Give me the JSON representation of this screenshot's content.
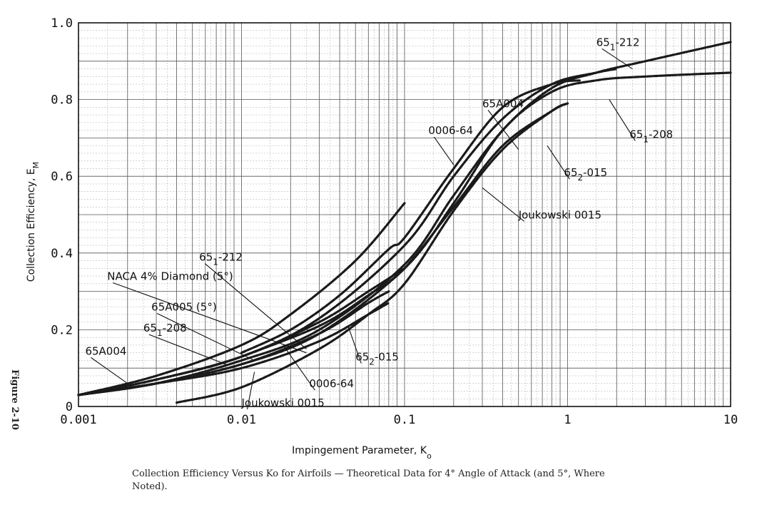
{
  "figure_label": "Figure 2-10",
  "caption": "Collection Efficiency Versus Ko for Airfoils — Theoretical Data for 4° Angle of Attack (and 5°, Where Noted).",
  "chart_data": {
    "type": "line",
    "title": "",
    "xlabel": "Impingement Parameter, K",
    "xlabel_sub": "o",
    "ylabel": "Collection Efficiency, E",
    "ylabel_sub": "M",
    "xscale": "log",
    "xlim": [
      0.001,
      10
    ],
    "ylim": [
      0,
      1.0
    ],
    "grid": true,
    "x_ticks": [
      {
        "value": 0.001,
        "label": "0.001"
      },
      {
        "value": 0.01,
        "label": "0.01"
      },
      {
        "value": 0.1,
        "label": "0.1"
      },
      {
        "value": 1,
        "label": "1"
      },
      {
        "value": 10,
        "label": "10"
      }
    ],
    "y_ticks": [
      {
        "value": 0,
        "label": "0"
      },
      {
        "value": 0.2,
        "label": "0.2"
      },
      {
        "value": 0.4,
        "label": "0.4"
      },
      {
        "value": 0.6,
        "label": "0.6"
      },
      {
        "value": 0.8,
        "label": "0.8"
      },
      {
        "value": 1.0,
        "label": "1.0"
      }
    ],
    "series": [
      {
        "x": [
          0.001,
          0.003,
          0.01,
          0.03,
          0.1,
          0.2,
          0.4,
          0.8,
          1.5,
          3,
          10
        ],
        "y": [
          0.03,
          0.06,
          0.12,
          0.2,
          0.37,
          0.55,
          0.72,
          0.83,
          0.87,
          0.9,
          0.95
        ]
      },
      {
        "x": [
          0.001,
          0.003,
          0.01,
          0.03,
          0.1,
          0.2,
          0.4,
          0.8,
          1.5,
          3,
          10
        ],
        "y": [
          0.03,
          0.06,
          0.11,
          0.19,
          0.36,
          0.53,
          0.72,
          0.82,
          0.85,
          0.86,
          0.87
        ]
      },
      {
        "x": [
          0.001,
          0.003,
          0.01,
          0.03,
          0.1,
          0.2,
          0.4,
          0.8,
          1.5,
          2.0
        ],
        "y": [
          0.03,
          0.07,
          0.13,
          0.23,
          0.42,
          0.6,
          0.75,
          0.84,
          0.87,
          0.88
        ]
      },
      {
        "x": [
          0.01,
          0.02,
          0.04,
          0.08,
          0.1,
          0.2,
          0.4,
          0.8,
          1.2
        ],
        "y": [
          0.14,
          0.2,
          0.29,
          0.41,
          0.44,
          0.62,
          0.78,
          0.84,
          0.85
        ]
      },
      {
        "x": [
          0.01,
          0.03,
          0.06,
          0.1,
          0.2,
          0.4,
          0.8,
          1.0
        ],
        "y": [
          0.13,
          0.21,
          0.29,
          0.36,
          0.52,
          0.68,
          0.77,
          0.79
        ]
      },
      {
        "x": [
          0.004,
          0.01,
          0.03,
          0.06,
          0.1,
          0.2,
          0.4,
          0.8,
          1.0
        ],
        "y": [
          0.01,
          0.05,
          0.15,
          0.24,
          0.32,
          0.51,
          0.67,
          0.77,
          0.79
        ]
      },
      {
        "x": [
          0.001,
          0.003,
          0.01,
          0.02,
          0.05,
          0.1
        ],
        "y": [
          0.03,
          0.08,
          0.16,
          0.24,
          0.38,
          0.53
        ]
      },
      {
        "x": [
          0.001,
          0.003,
          0.01,
          0.03,
          0.06,
          0.1
        ],
        "y": [
          0.03,
          0.07,
          0.13,
          0.22,
          0.3,
          0.36
        ]
      },
      {
        "x": [
          0.001,
          0.003,
          0.01,
          0.03,
          0.06,
          0.08
        ],
        "y": [
          0.03,
          0.06,
          0.11,
          0.19,
          0.27,
          0.3
        ]
      },
      {
        "x": [
          0.001,
          0.003,
          0.01,
          0.03,
          0.06,
          0.08
        ],
        "y": [
          0.03,
          0.06,
          0.1,
          0.17,
          0.24,
          0.27
        ]
      }
    ],
    "annotations": [
      {
        "prefix": "65",
        "sub": "1",
        "suffix": "-212",
        "tx": 1.5,
        "ty": 0.94,
        "ax": 2.5,
        "ay": 0.88
      },
      {
        "prefix": "65A004",
        "sub": "",
        "suffix": "",
        "tx": 0.3,
        "ty": 0.78,
        "ax": 0.5,
        "ay": 0.67
      },
      {
        "prefix": "0006-64",
        "sub": "",
        "suffix": "",
        "tx": 0.14,
        "ty": 0.71,
        "ax": 0.2,
        "ay": 0.63
      },
      {
        "prefix": "65",
        "sub": "1",
        "suffix": "-208",
        "tx": 2.4,
        "ty": 0.7,
        "ax": 1.8,
        "ay": 0.8
      },
      {
        "prefix": "65",
        "sub": "2",
        "suffix": "-015",
        "tx": 0.95,
        "ty": 0.6,
        "ax": 0.75,
        "ay": 0.68
      },
      {
        "prefix": "Joukowski 0015",
        "sub": "",
        "suffix": "",
        "tx": 0.5,
        "ty": 0.49,
        "ax": 0.3,
        "ay": 0.57
      },
      {
        "prefix": "65",
        "sub": "1",
        "suffix": "-212",
        "tx": 0.0055,
        "ty": 0.38,
        "ax": 0.025,
        "ay": 0.15
      },
      {
        "prefix": "NACA 4% Diamond (5°)",
        "sub": "",
        "suffix": "",
        "tx": 0.0015,
        "ty": 0.33,
        "ax": 0.025,
        "ay": 0.14
      },
      {
        "prefix": "65A005 (5°)",
        "sub": "",
        "suffix": "",
        "tx": 0.0028,
        "ty": 0.25,
        "ax": 0.012,
        "ay": 0.12
      },
      {
        "prefix": "65",
        "sub": "1",
        "suffix": "-208",
        "tx": 0.0025,
        "ty": 0.195,
        "ax": 0.008,
        "ay": 0.11
      },
      {
        "prefix": "65A004",
        "sub": "",
        "suffix": "",
        "tx": 0.0011,
        "ty": 0.135,
        "ax": 0.002,
        "ay": 0.06
      },
      {
        "prefix": "65",
        "sub": "2",
        "suffix": "-015",
        "tx": 0.05,
        "ty": 0.12,
        "ax": 0.045,
        "ay": 0.21
      },
      {
        "prefix": "0006-64",
        "sub": "",
        "suffix": "",
        "tx": 0.026,
        "ty": 0.05,
        "ax": 0.018,
        "ay": 0.16
      },
      {
        "prefix": "Joukowski 0015",
        "sub": "",
        "suffix": "",
        "tx": 0.01,
        "ty": 0.0,
        "ax": 0.012,
        "ay": 0.09
      }
    ]
  }
}
